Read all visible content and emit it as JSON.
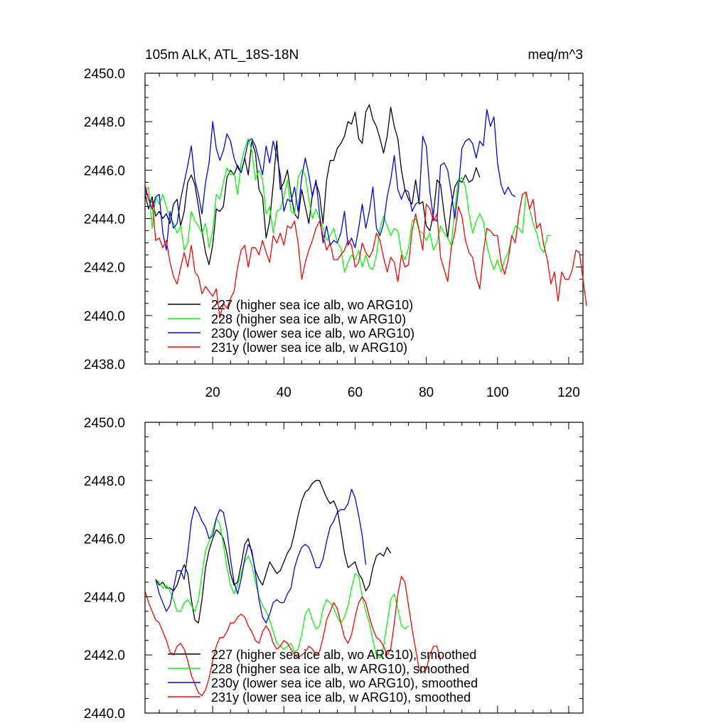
{
  "chart_data": [
    {
      "type": "line",
      "title": "105m ALK, ATL_18S-18N",
      "units": "meq/m^3",
      "xlim": [
        1,
        124
      ],
      "ylim": [
        2438,
        2450
      ],
      "xticks": [
        20,
        40,
        60,
        80,
        100,
        120
      ],
      "yticks": [
        2438,
        2440,
        2442,
        2444,
        2446,
        2448,
        2450
      ],
      "ytick_labels": [
        "2438.0",
        "2440.0",
        "2442.0",
        "2444.0",
        "2446.0",
        "2448.0",
        "2450.0"
      ],
      "legend_placement": "lower-left",
      "series": [
        {
          "name": "227 (higher sea ice alb, wo ARG10)",
          "color": "#000000",
          "x_start": 1,
          "values": [
            2445.0,
            2444.4,
            2444.9,
            2444.1,
            2444.3,
            2444.0,
            2444.2,
            2443.8,
            2444.6,
            2444.8,
            2443.7,
            2444.3,
            2445.5,
            2445.8,
            2445.4,
            2444.5,
            2443.5,
            2442.6,
            2442.1,
            2442.9,
            2444.4,
            2444.3,
            2444.5,
            2445.7,
            2446.0,
            2445.8,
            2446.2,
            2445.9,
            2446.5,
            2445.8,
            2447.2,
            2446.7,
            2445.2,
            2444.9,
            2443.2,
            2443.9,
            2445.4,
            2447.2,
            2445.2,
            2445.5,
            2446.0,
            2445.0,
            2444.2,
            2444.0,
            2445.2,
            2444.5,
            2443.8,
            2445.0,
            2445.5,
            2445.0,
            2443.8,
            2445.6,
            2446.4,
            2446.4,
            2446.9,
            2447.1,
            2447.4,
            2448.0,
            2447.9,
            2448.4,
            2447.3,
            2447.1,
            2448.4,
            2448.7,
            2448.1,
            2447.8,
            2447.3,
            2446.7,
            2447.4,
            2448.6,
            2447.8,
            2447.3,
            2446.0,
            2445.2,
            2444.8,
            2444.6,
            2445.6,
            2444.6,
            2444.7,
            2443.7,
            2443.5,
            2444.2,
            2445.6,
            2445.4,
            2444.2,
            2443.2,
            2444.5,
            2445.3,
            2445.6,
            2445.5,
            2445.8,
            2445.5,
            2445.6,
            2446.1,
            2445.7
          ]
        },
        {
          "name": "228 (higher sea ice alb, w ARG10)",
          "color": "#00ff00",
          "x_start": 1,
          "values": [
            2445.1,
            2445.3,
            2443.6,
            2444.9,
            2444.6,
            2445.0,
            2444.5,
            2444.0,
            2443.8,
            2443.4,
            2443.7,
            2442.7,
            2443.0,
            2444.3,
            2443.9,
            2443.7,
            2443.4,
            2443.8,
            2442.8,
            2443.5,
            2445.0,
            2444.8,
            2445.5,
            2446.1,
            2445.8,
            2445.9,
            2445.0,
            2446.3,
            2446.9,
            2447.3,
            2446.8,
            2445.6,
            2446.0,
            2445.6,
            2444.2,
            2444.5,
            2443.4,
            2444.3,
            2444.4,
            2444.9,
            2445.6,
            2444.3,
            2444.2,
            2445.7,
            2446.0,
            2445.8,
            2444.8,
            2444.0,
            2444.4,
            2444.0,
            2443.6,
            2443.1,
            2443.3,
            2443.6,
            2443.0,
            2442.8,
            2441.8,
            2442.2,
            2442.5,
            2442.3,
            2442.7,
            2442.0,
            2442.5,
            2442.0,
            2441.9,
            2442.5,
            2443.6,
            2444.1,
            2443.7,
            2443.3,
            2443.6,
            2443.5,
            2442.6,
            2442.3,
            2442.8,
            2443.9,
            2444.0,
            2443.5,
            2443.4,
            2443.1,
            2443.4,
            2442.7,
            2443.0,
            2443.7,
            2443.4,
            2443.2,
            2442.9,
            2444.4,
            2445.6,
            2445.7,
            2445.3,
            2444.2,
            2443.4,
            2443.9,
            2444.2,
            2443.9,
            2442.9,
            2442.3,
            2441.9,
            2442.3,
            2441.8,
            2442.3,
            2442.6,
            2443.2,
            2443.7,
            2443.6,
            2443.4,
            2445.1,
            2444.4,
            2443.8,
            2443.4,
            2442.8,
            2442.6,
            2443.3,
            2443.3
          ]
        },
        {
          "name": "230y (lower sea ice alb, wo ARG10)",
          "color": "#0000ff",
          "x_start": 1,
          "values": [
            2445.2,
            2444.8,
            2444.4,
            2444.9,
            2445.0,
            2443.4,
            2442.7,
            2444.3,
            2443.6,
            2443.8,
            2444.8,
            2445.5,
            2446.2,
            2447.0,
            2445.6,
            2445.0,
            2444.2,
            2445.5,
            2446.3,
            2448.0,
            2446.9,
            2446.4,
            2446.8,
            2447.5,
            2447.2,
            2446.5,
            2446.1,
            2445.9,
            2446.5,
            2447.2,
            2447.3,
            2447.0,
            2446.4,
            2445.8,
            2447.0,
            2446.3,
            2447.2,
            2446.6,
            2445.8,
            2444.3,
            2444.8,
            2444.7,
            2445.3,
            2444.3,
            2445.7,
            2446.5,
            2445.8,
            2444.9,
            2445.6,
            2444.2,
            2443.0,
            2443.7,
            2442.9,
            2443.1,
            2443.0,
            2443.4,
            2444.3,
            2442.9,
            2443.2,
            2442.8,
            2443.6,
            2444.6,
            2443.6,
            2444.3,
            2445.3,
            2443.6,
            2443.3,
            2443.8,
            2444.9,
            2445.6,
            2446.6,
            2445.2,
            2444.8,
            2445.2,
            2445.1,
            2444.3,
            2444.6,
            2444.7,
            2447.4,
            2447.0,
            2445.1,
            2444.0,
            2443.9,
            2446.2,
            2446.3,
            2446.0,
            2445.1,
            2444.0,
            2445.2,
            2446.9,
            2447.2,
            2447.3,
            2447.1,
            2446.5,
            2447.2,
            2447.0,
            2448.5,
            2447.8,
            2448.2,
            2446.3,
            2445.4,
            2445.0,
            2445.3,
            2445.0,
            2444.9
          ]
        },
        {
          "name": "231y (lower sea ice alb, w ARG10)",
          "color": "#ff0000",
          "x_start": 1,
          "values": [
            2445.4,
            2444.8,
            2444.7,
            2443.1,
            2443.2,
            2442.8,
            2443.1,
            2442.2,
            2441.6,
            2441.3,
            2442.0,
            2442.6,
            2442.0,
            2442.9,
            2441.8,
            2441.6,
            2440.9,
            2441.2,
            2441.0,
            2440.8,
            2441.1,
            2439.9,
            2440.5,
            2440.3,
            2440.7,
            2441.0,
            2442.0,
            2442.7,
            2442.9,
            2442.0,
            2442.8,
            2442.8,
            2442.5,
            2443.1,
            2442.6,
            2442.2,
            2443.3,
            2443.0,
            2443.4,
            2442.9,
            2443.7,
            2443.6,
            2443.9,
            2443.0,
            2441.5,
            2442.2,
            2442.7,
            2443.1,
            2443.6,
            2443.9,
            2443.3,
            2442.7,
            2443.0,
            2442.3,
            2442.3,
            2442.5,
            2442.7,
            2443.1,
            2442.9,
            2442.0,
            2442.2,
            2443.0,
            2442.6,
            2442.4,
            2442.7,
            2443.4,
            2443.1,
            2442.4,
            2441.8,
            2442.4,
            2442.2,
            2441.4,
            2442.5,
            2442.0,
            2442.1,
            2443.5,
            2444.2,
            2443.5,
            2442.7,
            2444.6,
            2444.4,
            2443.9,
            2444.2,
            2442.4,
            2441.9,
            2441.4,
            2442.8,
            2443.4,
            2444.5,
            2444.1,
            2443.1,
            2442.6,
            2442.4,
            2441.6,
            2441.1,
            2442.6,
            2443.6,
            2443.5,
            2443.3,
            2443.3,
            2442.2,
            2441.7,
            2442.3,
            2443.3,
            2443.0,
            2444.2,
            2445.0,
            2445.1,
            2444.4,
            2444.8,
            2443.6,
            2443.8,
            2442.9,
            2442.3,
            2441.3,
            2441.8,
            2440.6,
            2441.8,
            2441.5,
            2441.5,
            2441.9,
            2442.7,
            2442.6,
            2441.5,
            2440.4
          ]
        }
      ]
    },
    {
      "type": "line",
      "xlim": [
        1,
        124
      ],
      "ylim": [
        2440,
        2450
      ],
      "xticks": [
        20,
        40,
        60,
        80,
        100,
        120
      ],
      "yticks": [
        2440,
        2442,
        2444,
        2446,
        2448,
        2450
      ],
      "ytick_labels": [
        "2440.0",
        "2442.0",
        "2444.0",
        "2446.0",
        "2448.0",
        "2450.0"
      ],
      "legend_placement": "lower-left",
      "series": [
        {
          "name": "227 (higher sea ice alb, wo ARG10), smoothed",
          "color": "#000000",
          "x_start": 4,
          "values": [
            2444.6,
            2444.4,
            2444.5,
            2444.3,
            2444.3,
            2444.2,
            2444.4,
            2444.8,
            2445.1,
            2444.8,
            2443.9,
            2443.2,
            2443.1,
            2443.9,
            2445.0,
            2445.6,
            2446.0,
            2446.3,
            2446.2,
            2446.0,
            2445.5,
            2444.8,
            2444.4,
            2444.5,
            2445.1,
            2445.8,
            2446.0,
            2445.5,
            2444.9,
            2444.6,
            2444.4,
            2444.8,
            2445.2,
            2445.0,
            2444.8,
            2444.9,
            2445.2,
            2445.5,
            2445.7,
            2446.2,
            2446.8,
            2447.3,
            2447.6,
            2447.7,
            2447.9,
            2448.0,
            2448.0,
            2447.7,
            2447.4,
            2447.2,
            2447.3,
            2447.0,
            2446.3,
            2445.5,
            2445.0,
            2445.1,
            2445.2,
            2444.8,
            2444.6,
            2444.2,
            2444.4,
            2445.0,
            2445.4,
            2445.5,
            2445.4,
            2445.7,
            2445.5
          ]
        },
        {
          "name": "228 (higher sea ice alb, w ARG10), smoothed",
          "color": "#00ff00",
          "x_start": 4,
          "values": [
            2444.6,
            2444.5,
            2444.3,
            2444.4,
            2444.2,
            2443.9,
            2443.5,
            2443.5,
            2443.8,
            2443.9,
            2443.7,
            2443.5,
            2443.9,
            2444.8,
            2445.6,
            2445.9,
            2446.3,
            2446.7,
            2446.5,
            2445.8,
            2445.0,
            2444.4,
            2444.1,
            2444.4,
            2444.8,
            2445.2,
            2445.4,
            2445.1,
            2444.5,
            2444.0,
            2443.7,
            2443.5,
            2443.2,
            2442.8,
            2442.4,
            2442.3,
            2442.2,
            2442.3,
            2442.4,
            2442.1,
            2442.2,
            2442.7,
            2443.4,
            2443.6,
            2443.2,
            2442.9,
            2443.0,
            2443.6,
            2443.9,
            2443.8,
            2443.6,
            2443.3,
            2443.1,
            2443.3,
            2443.7,
            2444.3,
            2444.8,
            2444.7,
            2444.0,
            2443.5,
            2443.1,
            2442.5,
            2442.0,
            2441.9,
            2442.3,
            2443.1,
            2443.9,
            2444.1,
            2443.6,
            2443.0,
            2442.9,
            2443.0
          ]
        },
        {
          "name": "230y (lower sea ice alb, wo ARG10), smoothed",
          "color": "#0000ff",
          "x_start": 4,
          "values": [
            2444.6,
            2444.1,
            2443.8,
            2443.5,
            2443.7,
            2444.3,
            2444.9,
            2444.9,
            2444.6,
            2445.5,
            2446.6,
            2447.1,
            2446.9,
            2446.6,
            2446.4,
            2446.0,
            2446.1,
            2446.7,
            2447.0,
            2446.9,
            2446.3,
            2445.3,
            2444.5,
            2444.1,
            2444.6,
            2445.3,
            2445.8,
            2445.6,
            2444.8,
            2443.9,
            2443.3,
            2443.1,
            2443.4,
            2443.8,
            2443.9,
            2443.8,
            2443.8,
            2444.1,
            2444.3,
            2445.0,
            2445.4,
            2445.7,
            2445.8,
            2445.7,
            2445.4,
            2445.0,
            2445.0,
            2445.3,
            2445.9,
            2446.4,
            2446.6,
            2446.9,
            2447.0,
            2447.0,
            2447.2,
            2447.7,
            2447.4,
            2446.8,
            2446.1,
            2445.1
          ]
        },
        {
          "name": "231y (lower sea ice alb, w ARG10), smoothed",
          "color": "#ff0000",
          "x_start": 1,
          "values": [
            2444.2,
            2443.8,
            2443.5,
            2443.2,
            2443.1,
            2442.8,
            2442.5,
            2442.1,
            2442.0,
            2442.3,
            2442.4,
            2442.2,
            2441.8,
            2441.3,
            2441.0,
            2440.7,
            2440.6,
            2440.8,
            2441.2,
            2441.8,
            2442.3,
            2442.6,
            2442.6,
            2442.8,
            2443.1,
            2443.1,
            2443.3,
            2443.4,
            2443.3,
            2443.0,
            2442.8,
            2442.5,
            2442.4,
            2442.8,
            2443.0,
            2442.8,
            2442.4,
            2442.2,
            2442.3,
            2442.5,
            2442.4,
            2442.2,
            2442.0,
            2441.9,
            2442.0,
            2442.1,
            2442.3,
            2442.2,
            2442.0,
            2442.1,
            2442.6,
            2443.2,
            2443.5,
            2443.8,
            2443.6,
            2443.1,
            2442.6,
            2442.4,
            2442.7,
            2443.3,
            2443.8,
            2444.0,
            2443.8,
            2443.3,
            2442.9,
            2442.6,
            2442.5,
            2442.3,
            2442.0,
            2442.2,
            2443.1,
            2444.1,
            2444.7,
            2444.5,
            2443.7,
            2442.9,
            2442.2,
            2441.5,
            2441.4,
            2441.5,
            2442.0,
            2442.3,
            2442.3,
            2441.8
          ]
        }
      ]
    }
  ]
}
